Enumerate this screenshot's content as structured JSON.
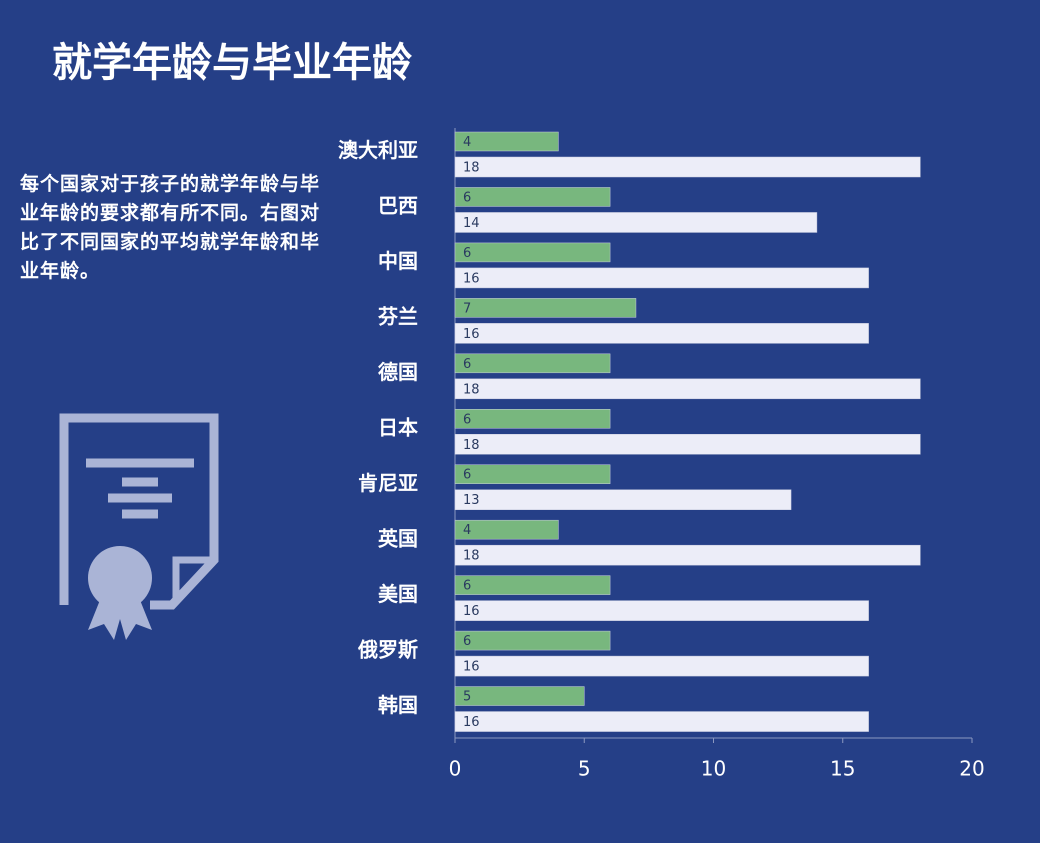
{
  "slide": {
    "title": "就学年龄与毕业年龄",
    "text": "每个国家对于孩子的就学年龄与毕业年龄的要求都有所不同。右图对比了不同国家的平均就学年龄和毕业年龄。"
  },
  "chart_data": {
    "type": "hbar",
    "categories": [
      "澳大利亚",
      "巴西",
      "中国",
      "芬兰",
      "德国",
      "日本",
      "肯尼亚",
      "英国",
      "美国",
      "俄罗斯",
      "韩国"
    ],
    "series": [
      {
        "color": "#78b77e",
        "values": [
          4,
          6,
          6,
          7,
          6,
          6,
          6,
          4,
          6,
          6,
          5
        ]
      },
      {
        "color": "#ecedf8",
        "values": [
          18,
          14,
          16,
          16,
          18,
          18,
          13,
          18,
          16,
          16,
          16
        ]
      }
    ],
    "xlim": [
      0,
      20
    ],
    "xticks": [
      0,
      5,
      10,
      15,
      20
    ]
  }
}
